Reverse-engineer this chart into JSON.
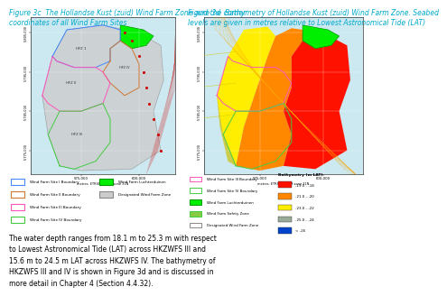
{
  "fig_title_left": "Figure 3c  The Hollandse Kust (zuid) Wind Farm Zone and the corner\ncoordinates of all Wind Farm Sites",
  "fig_title_right": "Figure 3d  Bathymetry of Hollandse Kust (zuid) Wind Farm Zone. Seabed\nlevels are given in metres relative to Lowest Astronomical Tide (LAT)",
  "body_text": "The water depth ranges from 18.1 m to 25.3 m with respect\nto Lowest Astronomical Tide (LAT) across HKZWFS III and\n15.6 m to 24.5 m LAT across HKZWFS IV. The bathymetry of\nHKZWFS III and IV is shown in Figure 3d and is discussed in\nmore detail in Chapter 4 (Section 4.4.32).",
  "title_color": "#00aacc",
  "body_fontsize": 5.5,
  "title_fontsize": 5.5,
  "bg_color": "#ffffff",
  "map_bg": "#cce8f0",
  "bathymetry_title": "Bathymetry (m LAT)",
  "bathymetry_colors": [
    "#ff1100",
    "#ff8800",
    "#ffee00",
    "#99aa99",
    "#0044cc"
  ],
  "bathymetry_labels": [
    "-19.0 - -18",
    "-21.0 - -20",
    "-23.0 - -22",
    "-25.0 - -24",
    "< -26"
  ]
}
